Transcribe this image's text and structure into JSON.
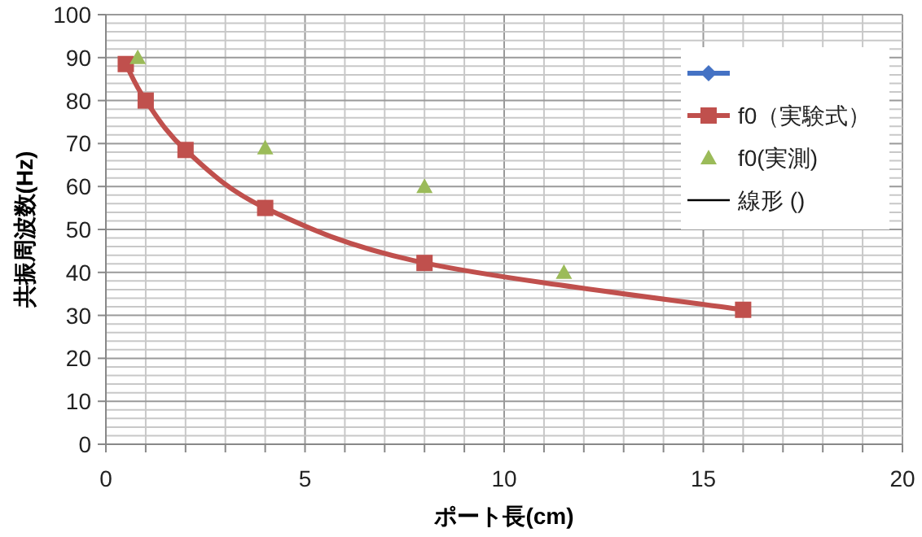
{
  "chart_data": {
    "type": "line",
    "xlabel": "ポート長(cm)",
    "ylabel": "共振周波数(Hz)",
    "xlim": [
      0,
      20
    ],
    "ylim": [
      0,
      100
    ],
    "xticks": [
      0,
      {
        "value": 1,
        "label": null
      },
      {
        "value": 2,
        "label": null
      },
      {
        "value": 3,
        "label": null
      },
      {
        "value": 4,
        "label": null
      },
      5,
      {
        "value": 6,
        "label": null
      },
      {
        "value": 7,
        "label": null
      },
      {
        "value": 8,
        "label": null
      },
      {
        "value": 9,
        "label": null
      },
      10,
      {
        "value": 11,
        "label": null
      },
      {
        "value": 12,
        "label": null
      },
      {
        "value": 13,
        "label": null
      },
      {
        "value": 14,
        "label": null
      },
      15,
      {
        "value": 16,
        "label": null
      },
      {
        "value": 17,
        "label": null
      },
      {
        "value": 18,
        "label": null
      },
      {
        "value": 19,
        "label": null
      },
      20
    ],
    "yticks": [
      0,
      {
        "value": 2,
        "label": null
      },
      {
        "value": 4,
        "label": null
      },
      {
        "value": 6,
        "label": null
      },
      {
        "value": 8,
        "label": null
      },
      10,
      {
        "value": 12,
        "label": null
      },
      {
        "value": 14,
        "label": null
      },
      {
        "value": 16,
        "label": null
      },
      {
        "value": 18,
        "label": null
      },
      20,
      {
        "value": 22,
        "label": null
      },
      {
        "value": 24,
        "label": null
      },
      {
        "value": 26,
        "label": null
      },
      {
        "value": 28,
        "label": null
      },
      30,
      {
        "value": 32,
        "label": null
      },
      {
        "value": 34,
        "label": null
      },
      {
        "value": 36,
        "label": null
      },
      {
        "value": 38,
        "label": null
      },
      40,
      {
        "value": 42,
        "label": null
      },
      {
        "value": 44,
        "label": null
      },
      {
        "value": 46,
        "label": null
      },
      {
        "value": 48,
        "label": null
      },
      50,
      {
        "value": 52,
        "label": null
      },
      {
        "value": 54,
        "label": null
      },
      {
        "value": 56,
        "label": null
      },
      {
        "value": 58,
        "label": null
      },
      60,
      {
        "value": 62,
        "label": null
      },
      {
        "value": 64,
        "label": null
      },
      {
        "value": 66,
        "label": null
      },
      {
        "value": 68,
        "label": null
      },
      70,
      {
        "value": 72,
        "label": null
      },
      {
        "value": 74,
        "label": null
      },
      {
        "value": 76,
        "label": null
      },
      {
        "value": 78,
        "label": null
      },
      80,
      {
        "value": 82,
        "label": null
      },
      {
        "value": 84,
        "label": null
      },
      {
        "value": 86,
        "label": null
      },
      {
        "value": 88,
        "label": null
      },
      90,
      {
        "value": 92,
        "label": null
      },
      {
        "value": 94,
        "label": null
      },
      {
        "value": 96,
        "label": null
      },
      {
        "value": 98,
        "label": null
      },
      100
    ],
    "grid": true,
    "legend": "top right",
    "series": [
      {
        "color": "#4472c4",
        "marker": "diamond"
      },
      {
        "name": "f0（実験式）",
        "color": "#c0504d",
        "marker": "square",
        "x": [
          0.5,
          1,
          2,
          4,
          8,
          16
        ],
        "values": [
          88.5,
          80,
          68.5,
          55,
          42.2,
          31.3
        ]
      },
      {
        "name": "f0(実測)",
        "type": "scatter",
        "color": "#9bbb59",
        "marker": "triangle",
        "x": [
          0.8,
          4,
          8,
          11.5
        ],
        "values": [
          90,
          69,
          60,
          40
        ]
      },
      {
        "name": "線形 ()",
        "color": "#000000",
        "marker": "none"
      }
    ]
  }
}
